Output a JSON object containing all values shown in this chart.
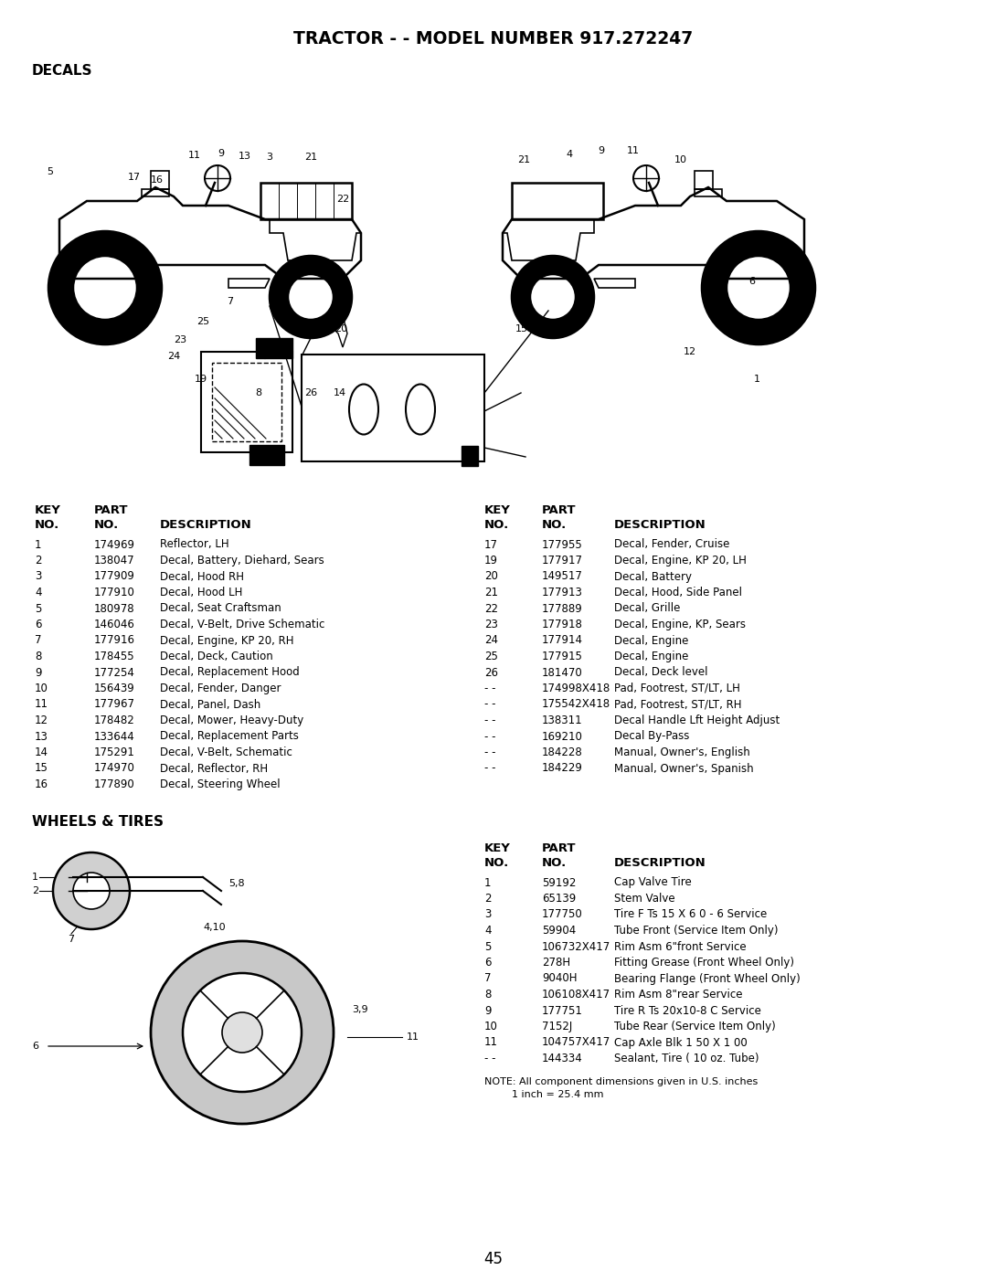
{
  "title": "TRACTOR - - MODEL NUMBER 917.272247",
  "section1": "DECALS",
  "section2": "WHEELS & TIRES",
  "bg_color": "#ffffff",
  "text_color": "#000000",
  "page_number": "45",
  "left_parts": [
    [
      "1",
      "174969",
      "Reflector, LH"
    ],
    [
      "2",
      "138047",
      "Decal, Battery, Diehard, Sears"
    ],
    [
      "3",
      "177909",
      "Decal, Hood RH"
    ],
    [
      "4",
      "177910",
      "Decal, Hood LH"
    ],
    [
      "5",
      "180978",
      "Decal, Seat Craftsman"
    ],
    [
      "6",
      "146046",
      "Decal, V-Belt, Drive Schematic"
    ],
    [
      "7",
      "177916",
      "Decal, Engine, KP 20, RH"
    ],
    [
      "8",
      "178455",
      "Decal, Deck, Caution"
    ],
    [
      "9",
      "177254",
      "Decal, Replacement Hood"
    ],
    [
      "10",
      "156439",
      "Decal, Fender, Danger"
    ],
    [
      "11",
      "177967",
      "Decal, Panel, Dash"
    ],
    [
      "12",
      "178482",
      "Decal, Mower, Heavy-Duty"
    ],
    [
      "13",
      "133644",
      "Decal, Replacement Parts"
    ],
    [
      "14",
      "175291",
      "Decal, V-Belt, Schematic"
    ],
    [
      "15",
      "174970",
      "Decal, Reflector, RH"
    ],
    [
      "16",
      "177890",
      "Decal, Steering Wheel"
    ]
  ],
  "right_parts": [
    [
      "17",
      "177955",
      "Decal, Fender, Cruise"
    ],
    [
      "19",
      "177917",
      "Decal, Engine, KP 20, LH"
    ],
    [
      "20",
      "149517",
      "Decal, Battery"
    ],
    [
      "21",
      "177913",
      "Decal, Hood, Side Panel"
    ],
    [
      "22",
      "177889",
      "Decal, Grille"
    ],
    [
      "23",
      "177918",
      "Decal, Engine, KP, Sears"
    ],
    [
      "24",
      "177914",
      "Decal, Engine"
    ],
    [
      "25",
      "177915",
      "Decal, Engine"
    ],
    [
      "26",
      "181470",
      "Decal, Deck level"
    ],
    [
      "- -",
      "174998X418",
      "Pad, Footrest, ST/LT, LH"
    ],
    [
      "- -",
      "175542X418",
      "Pad, Footrest, ST/LT, RH"
    ],
    [
      "- -",
      "138311",
      "Decal Handle Lft Height Adjust"
    ],
    [
      "- -",
      "169210",
      "Decal By-Pass"
    ],
    [
      "- -",
      "184228",
      "Manual, Owner's, English"
    ],
    [
      "- -",
      "184229",
      "Manual, Owner's, Spanish"
    ]
  ],
  "wheels_parts": [
    [
      "1",
      "59192",
      "Cap Valve Tire"
    ],
    [
      "2",
      "65139",
      "Stem Valve"
    ],
    [
      "3",
      "177750",
      "Tire F Ts 15 X 6 0 - 6 Service"
    ],
    [
      "4",
      "59904",
      "Tube Front (Service Item Only)"
    ],
    [
      "5",
      "106732X417",
      "Rim Asm 6\"front Service"
    ],
    [
      "6",
      "278H",
      "Fitting Grease (Front Wheel Only)"
    ],
    [
      "7",
      "9040H",
      "Bearing Flange (Front Wheel Only)"
    ],
    [
      "8",
      "106108X417",
      "Rim Asm 8\"rear Service"
    ],
    [
      "9",
      "177751",
      "Tire R Ts 20x10-8 C Service"
    ],
    [
      "10",
      "7152J",
      "Tube Rear (Service Item Only)"
    ],
    [
      "11",
      "104757X417",
      "Cap Axle Blk 1 50 X 1 00"
    ],
    [
      "- -",
      "144334",
      "Sealant, Tire ( 10 oz. Tube)"
    ]
  ],
  "note_line1": "NOTE: All component dimensions given in U.S. inches",
  "note_line2": "1 inch = 25.4 mm"
}
